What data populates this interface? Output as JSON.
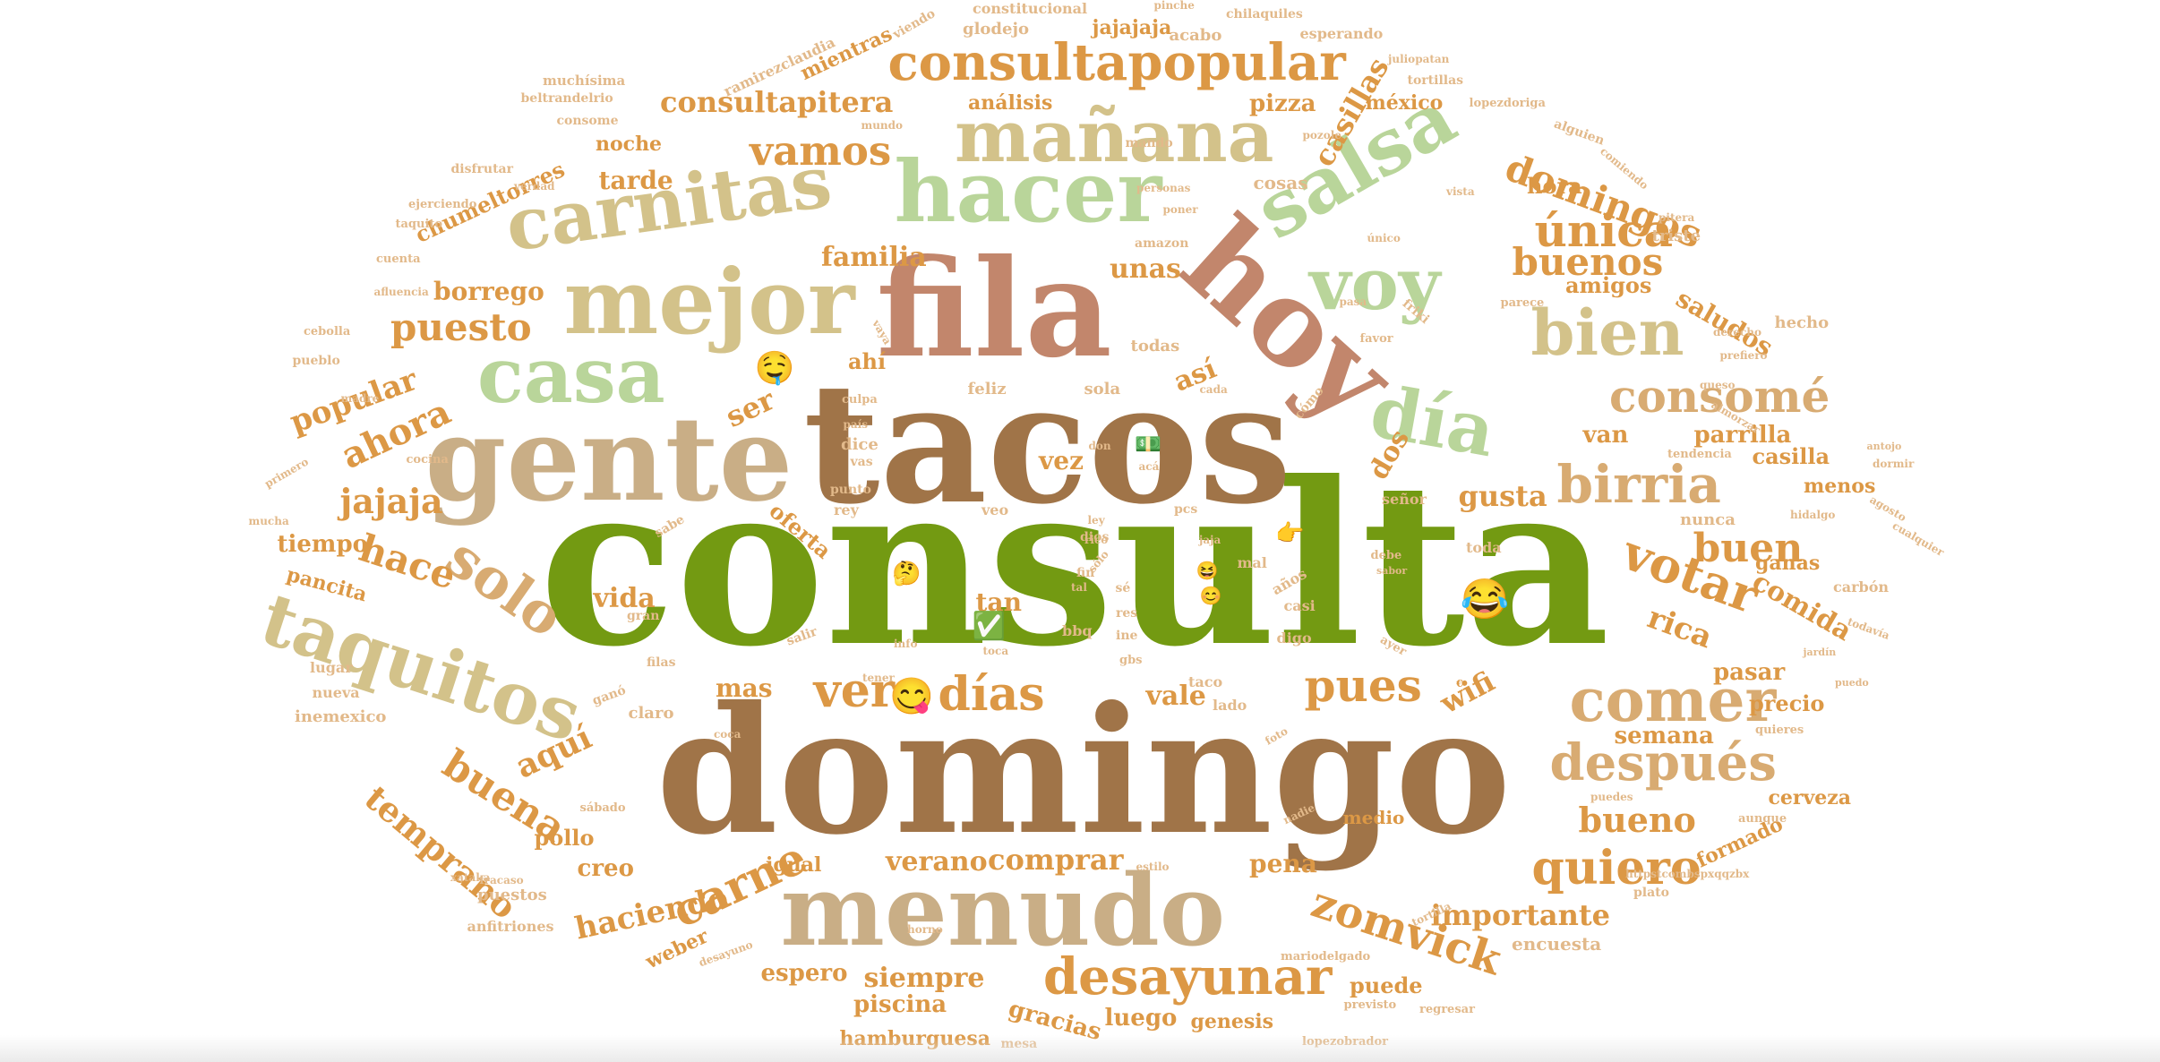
{
  "palette": {
    "olive": "#739a12",
    "brown": "#a07448",
    "terracotta": "#c2866c",
    "sage": "#b9d59a",
    "beige": "#c9ae86",
    "khaki": "#d3c28a",
    "orange": "#dc9845",
    "tan": "#d8ab72",
    "light": "#e2b98a"
  },
  "words": [
    {
      "t": "consulta",
      "c": "olive"
    },
    {
      "t": "domingo",
      "c": "brown"
    },
    {
      "t": "tacos",
      "c": "brown"
    },
    {
      "t": "fila",
      "c": "terracotta"
    },
    {
      "t": "hoy",
      "c": "terracotta"
    },
    {
      "t": "gente",
      "c": "beige"
    },
    {
      "t": "menudo",
      "c": "beige"
    },
    {
      "t": "mejor",
      "c": "khaki"
    },
    {
      "t": "hacer",
      "c": "sage"
    },
    {
      "t": "mañana",
      "c": "khaki"
    },
    {
      "t": "casa",
      "c": "sage"
    },
    {
      "t": "carnitas",
      "c": "khaki"
    },
    {
      "t": "taquitos",
      "c": "khaki"
    },
    {
      "t": "salsa",
      "c": "sage"
    },
    {
      "t": "voy",
      "c": "sage"
    },
    {
      "t": "día",
      "c": "sage"
    },
    {
      "t": "bien",
      "c": "khaki"
    },
    {
      "t": "desayunar",
      "c": "orange"
    },
    {
      "t": "consultapopular",
      "c": "orange"
    },
    {
      "t": "comer",
      "c": "tan"
    },
    {
      "t": "después",
      "c": "tan"
    },
    {
      "t": "birria",
      "c": "tan"
    },
    {
      "t": "consomé",
      "c": "tan"
    },
    {
      "t": "solo",
      "c": "tan"
    },
    {
      "t": "votar",
      "c": "orange"
    },
    {
      "t": "zomvick",
      "c": "orange"
    },
    {
      "t": "quiero",
      "c": "orange"
    },
    {
      "t": "única",
      "c": "orange"
    },
    {
      "t": "domingos",
      "c": "orange"
    },
    {
      "t": "buenos",
      "c": "orange"
    },
    {
      "t": "días",
      "c": "orange"
    },
    {
      "t": "ver",
      "c": "orange"
    },
    {
      "t": "pues",
      "c": "orange"
    },
    {
      "t": "buena",
      "c": "orange"
    },
    {
      "t": "hace",
      "c": "orange"
    },
    {
      "t": "vamos",
      "c": "orange"
    },
    {
      "t": "puesto",
      "c": "orange"
    },
    {
      "t": "carne",
      "c": "orange"
    },
    {
      "t": "buen",
      "c": "orange"
    },
    {
      "t": "temprano",
      "c": "orange"
    },
    {
      "t": "aquí",
      "c": "orange"
    },
    {
      "t": "bueno",
      "c": "orange"
    },
    {
      "t": "importante",
      "c": "orange"
    },
    {
      "t": "jajaja",
      "c": "orange"
    },
    {
      "t": "ahora",
      "c": "orange"
    },
    {
      "t": "consultapitera",
      "c": "orange"
    },
    {
      "t": "rica",
      "c": "orange"
    },
    {
      "t": "comida",
      "c": "orange"
    },
    {
      "t": "gusta",
      "c": "orange"
    },
    {
      "t": "wifi",
      "c": "orange"
    },
    {
      "t": "vale",
      "c": "orange"
    },
    {
      "t": "comprar",
      "c": "orange"
    },
    {
      "t": "verano",
      "c": "orange"
    },
    {
      "t": "haciendo",
      "c": "orange"
    },
    {
      "t": "siempre",
      "c": "orange"
    },
    {
      "t": "popular",
      "c": "orange"
    },
    {
      "t": "vida",
      "c": "orange"
    },
    {
      "t": "ser",
      "c": "orange"
    },
    {
      "t": "así",
      "c": "orange"
    },
    {
      "t": "dos",
      "c": "orange"
    },
    {
      "t": "vez",
      "c": "orange"
    },
    {
      "t": "tan",
      "c": "orange"
    },
    {
      "t": "casillas",
      "c": "orange"
    },
    {
      "t": "saludos",
      "c": "orange"
    },
    {
      "t": "familia",
      "c": "orange"
    },
    {
      "t": "tarde",
      "c": "orange"
    },
    {
      "t": "unas",
      "c": "orange"
    },
    {
      "t": "borrego",
      "c": "orange"
    },
    {
      "t": "pizza",
      "c": "orange"
    },
    {
      "t": "mas",
      "c": "orange"
    },
    {
      "t": "parrilla",
      "c": "orange"
    },
    {
      "t": "van",
      "c": "orange"
    },
    {
      "t": "casilla",
      "c": "orange"
    },
    {
      "t": "pasar",
      "c": "orange"
    },
    {
      "t": "precio",
      "c": "orange"
    },
    {
      "t": "semana",
      "c": "orange"
    },
    {
      "t": "pena",
      "c": "orange"
    },
    {
      "t": "puede",
      "c": "orange"
    },
    {
      "t": "luego",
      "c": "orange"
    },
    {
      "t": "gracias",
      "c": "orange"
    },
    {
      "t": "piscina",
      "c": "orange"
    },
    {
      "t": "espero",
      "c": "orange"
    },
    {
      "t": "creo",
      "c": "orange"
    },
    {
      "t": "pollo",
      "c": "orange"
    },
    {
      "t": "tiempo",
      "c": "orange"
    },
    {
      "t": "oferta",
      "c": "orange"
    },
    {
      "t": "ahí",
      "c": "orange"
    },
    {
      "t": "amigos",
      "c": "orange"
    },
    {
      "t": "hora",
      "c": "orange"
    },
    {
      "t": "menos",
      "c": "orange"
    },
    {
      "t": "ganas",
      "c": "orange"
    },
    {
      "t": "cerveza",
      "c": "orange"
    },
    {
      "t": "hamburguesa",
      "c": "orange"
    },
    {
      "t": "genesis",
      "c": "orange"
    },
    {
      "t": "noche",
      "c": "orange"
    },
    {
      "t": "análisis",
      "c": "orange"
    },
    {
      "t": "méxico",
      "c": "orange"
    },
    {
      "t": "mientras",
      "c": "orange"
    },
    {
      "t": "jajajaja",
      "c": "orange"
    },
    {
      "t": "chumeltorres",
      "c": "orange"
    },
    {
      "t": "pancita",
      "c": "orange"
    },
    {
      "t": "weber",
      "c": "orange"
    },
    {
      "t": "igual",
      "c": "orange"
    },
    {
      "t": "encuesta",
      "c": "light"
    },
    {
      "t": "medio",
      "c": "orange"
    },
    {
      "t": "formado",
      "c": "orange"
    },
    {
      "t": "nunca",
      "c": "light"
    },
    {
      "t": "cosas",
      "c": "light"
    },
    {
      "t": "triste",
      "c": "light"
    },
    {
      "t": "hecho",
      "c": "light"
    },
    {
      "t": "feliz",
      "c": "light"
    },
    {
      "t": "sola",
      "c": "light"
    },
    {
      "t": "todas",
      "c": "light"
    },
    {
      "t": "dice",
      "c": "light"
    },
    {
      "t": "claro",
      "c": "light"
    },
    {
      "t": "inemexico",
      "c": "light"
    },
    {
      "t": "puestos",
      "c": "light"
    },
    {
      "t": "anfitriones",
      "c": "light"
    },
    {
      "t": "toda",
      "c": "light"
    },
    {
      "t": "señor",
      "c": "light"
    },
    {
      "t": "carbón",
      "c": "light"
    },
    {
      "t": "rey",
      "c": "light"
    },
    {
      "t": "veo",
      "c": "light"
    },
    {
      "t": "mal",
      "c": "light"
    },
    {
      "t": "casi",
      "c": "light"
    },
    {
      "t": "digo",
      "c": "light"
    },
    {
      "t": "años",
      "c": "light"
    },
    {
      "t": "bbq",
      "c": "light"
    },
    {
      "t": "taco",
      "c": "light"
    },
    {
      "t": "lado",
      "c": "light"
    },
    {
      "t": "nueva",
      "c": "light"
    },
    {
      "t": "lugar",
      "c": "light"
    },
    {
      "t": "glodejo",
      "c": "light"
    },
    {
      "t": "acabo",
      "c": "light"
    },
    {
      "t": "esperando",
      "c": "light"
    },
    {
      "t": "constitucional",
      "c": "light"
    },
    {
      "t": "chilaquiles",
      "c": "light"
    },
    {
      "t": "pinche",
      "c": "light"
    },
    {
      "t": "viendo",
      "c": "light"
    },
    {
      "t": "ramirezclaudia",
      "c": "light"
    },
    {
      "t": "muchísima",
      "c": "light"
    },
    {
      "t": "beltrandelrio",
      "c": "light"
    },
    {
      "t": "consome",
      "c": "light"
    },
    {
      "t": "mundo",
      "c": "light"
    },
    {
      "t": "mando",
      "c": "light"
    },
    {
      "t": "juliopatan",
      "c": "light"
    },
    {
      "t": "tortillas",
      "c": "light"
    },
    {
      "t": "lopezdoriga",
      "c": "light"
    },
    {
      "t": "alguien",
      "c": "light"
    },
    {
      "t": "comiendo",
      "c": "light"
    },
    {
      "t": "pozole",
      "c": "light"
    },
    {
      "t": "disfrutar",
      "c": "light"
    },
    {
      "t": "verdad",
      "c": "light"
    },
    {
      "t": "ejerciendo",
      "c": "light"
    },
    {
      "t": "taquito",
      "c": "light"
    },
    {
      "t": "cuenta",
      "c": "light"
    },
    {
      "t": "afluencia",
      "c": "light"
    },
    {
      "t": "cebolla",
      "c": "light"
    },
    {
      "t": "pueblo",
      "c": "light"
    },
    {
      "t": "madre",
      "c": "light"
    },
    {
      "t": "primero",
      "c": "light"
    },
    {
      "t": "mucha",
      "c": "light"
    },
    {
      "t": "cocina",
      "c": "light"
    },
    {
      "t": "sabe",
      "c": "light"
    },
    {
      "t": "gran",
      "c": "light"
    },
    {
      "t": "filas",
      "c": "light"
    },
    {
      "t": "ganó",
      "c": "light"
    },
    {
      "t": "sábado",
      "c": "light"
    },
    {
      "t": "fracaso",
      "c": "light"
    },
    {
      "t": "xataka",
      "c": "light"
    },
    {
      "t": "desayuno",
      "c": "light"
    },
    {
      "t": "horno",
      "c": "light"
    },
    {
      "t": "estilo",
      "c": "light"
    },
    {
      "t": "coca",
      "c": "light"
    },
    {
      "t": "tener",
      "c": "light"
    },
    {
      "t": "salir",
      "c": "light"
    },
    {
      "t": "info",
      "c": "light"
    },
    {
      "t": "toca",
      "c": "light"
    },
    {
      "t": "punto",
      "c": "light"
    },
    {
      "t": "vas",
      "c": "light"
    },
    {
      "t": "país",
      "c": "light"
    },
    {
      "t": "culpa",
      "c": "light"
    },
    {
      "t": "vaya",
      "c": "light"
    },
    {
      "t": "don",
      "c": "light"
    },
    {
      "t": "acá",
      "c": "light"
    },
    {
      "t": "cada",
      "c": "light"
    },
    {
      "t": "cómo",
      "c": "light"
    },
    {
      "t": "pasa",
      "c": "light"
    },
    {
      "t": "friki",
      "c": "light"
    },
    {
      "t": "favor",
      "c": "light"
    },
    {
      "t": "único",
      "c": "light"
    },
    {
      "t": "vista",
      "c": "light"
    },
    {
      "t": "amazon",
      "c": "light"
    },
    {
      "t": "poner",
      "c": "light"
    },
    {
      "t": "personas",
      "c": "light"
    },
    {
      "t": "parece",
      "c": "light"
    },
    {
      "t": "pitera",
      "c": "light"
    },
    {
      "t": "derecho",
      "c": "light"
    },
    {
      "t": "prefiero",
      "c": "light"
    },
    {
      "t": "queso",
      "c": "light"
    },
    {
      "t": "almorzar",
      "c": "light"
    },
    {
      "t": "tendencia",
      "c": "light"
    },
    {
      "t": "antojo",
      "c": "light"
    },
    {
      "t": "dormir",
      "c": "light"
    },
    {
      "t": "hidalgo",
      "c": "light"
    },
    {
      "t": "agosto",
      "c": "light"
    },
    {
      "t": "cualquier",
      "c": "light"
    },
    {
      "t": "todavía",
      "c": "light"
    },
    {
      "t": "jardín",
      "c": "light"
    },
    {
      "t": "puedo",
      "c": "light"
    },
    {
      "t": "quieres",
      "c": "light"
    },
    {
      "t": "aunque",
      "c": "light"
    },
    {
      "t": "puedes",
      "c": "light"
    },
    {
      "t": "httpstcombspxqqzbx",
      "c": "light"
    },
    {
      "t": "plato",
      "c": "light"
    },
    {
      "t": "tortilla",
      "c": "light"
    },
    {
      "t": "regresar",
      "c": "light"
    },
    {
      "t": "previsto",
      "c": "light"
    },
    {
      "t": "mariodelgado",
      "c": "light"
    },
    {
      "t": "lopezobrador",
      "c": "light"
    },
    {
      "t": "mesa",
      "c": "light"
    },
    {
      "t": "nadie",
      "c": "light"
    },
    {
      "t": "foto",
      "c": "light"
    },
    {
      "t": "gbs",
      "c": "light"
    },
    {
      "t": "ine",
      "c": "light"
    },
    {
      "t": "res",
      "c": "light"
    },
    {
      "t": "sé",
      "c": "light"
    },
    {
      "t": "dios",
      "c": "light"
    },
    {
      "t": "sólo",
      "c": "light"
    },
    {
      "t": "tal",
      "c": "light"
    },
    {
      "t": "fin",
      "c": "light"
    },
    {
      "t": "ley",
      "c": "light"
    },
    {
      "t": "rico",
      "c": "light"
    },
    {
      "t": "pcs",
      "c": "light"
    },
    {
      "t": "jaja",
      "c": "light"
    },
    {
      "t": "debe",
      "c": "light"
    },
    {
      "t": "sabor",
      "c": "light"
    },
    {
      "t": "ayer",
      "c": "light"
    },
    {
      "t": "€",
      "c": "orange"
    }
  ],
  "emojis": [
    {
      "name": "drooling-face-icon",
      "glyph": "🤤"
    },
    {
      "name": "yum-face-icon",
      "glyph": "😋"
    },
    {
      "name": "tears-of-joy-icon",
      "glyph": "😂"
    },
    {
      "name": "check-mark-icon",
      "glyph": "✅"
    },
    {
      "name": "pointing-hand-icon",
      "glyph": "👉"
    },
    {
      "name": "thinking-face-icon",
      "glyph": "🤔"
    },
    {
      "name": "money-icon",
      "glyph": "💵"
    },
    {
      "name": "grin-face-icon",
      "glyph": "😆"
    },
    {
      "name": "smile-face-icon",
      "glyph": "😊"
    }
  ]
}
